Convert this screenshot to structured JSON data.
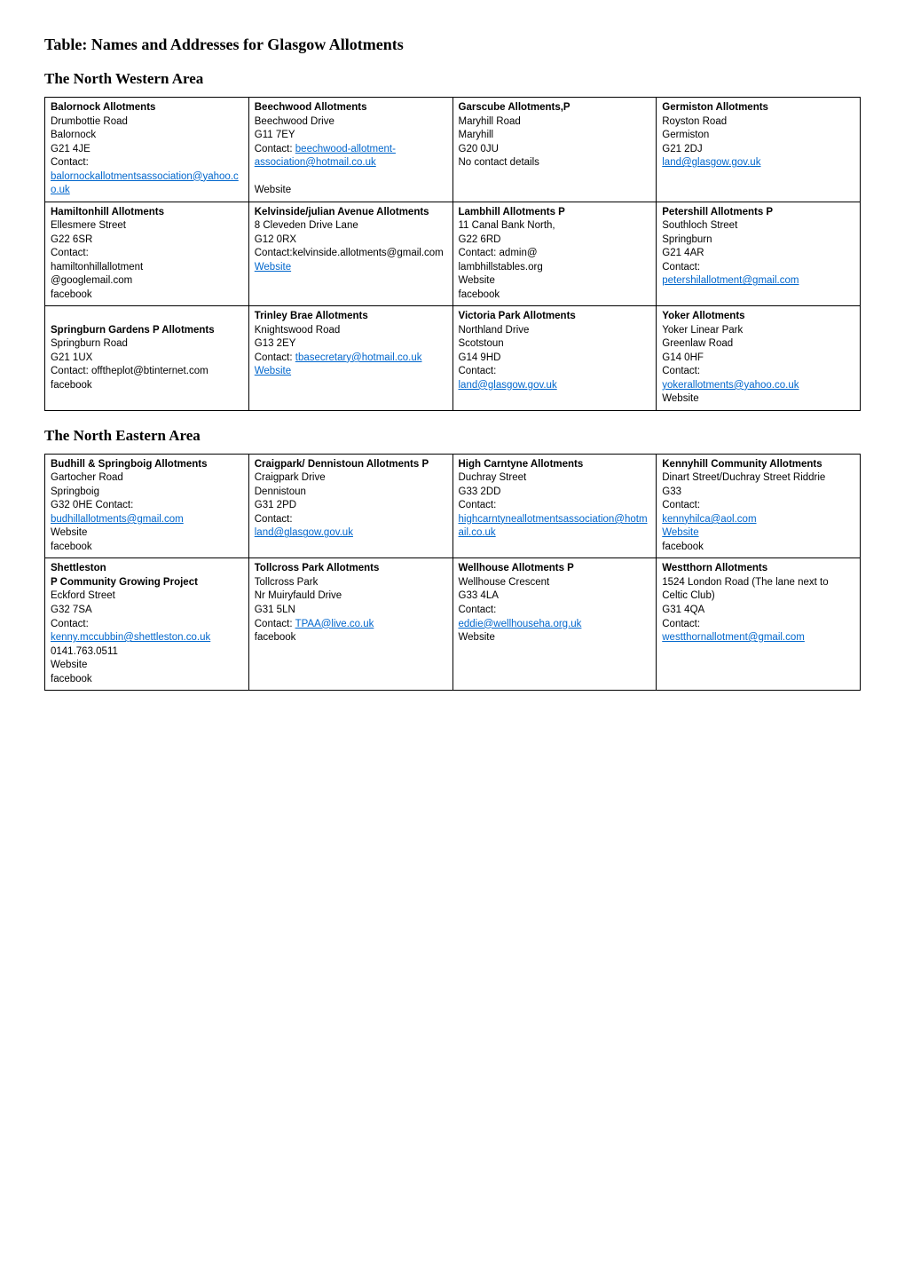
{
  "page_title": "Table: Names and Addresses for Glasgow Allotments",
  "areas": [
    {
      "heading": "The North Western Area",
      "rows": [
        [
          {
            "lines": [
              {
                "t": "Balornock Allotments",
                "b": true
              },
              {
                "t": "Drumbottie Road"
              },
              {
                "t": "Balornock"
              },
              {
                "t": "G21 4JE"
              },
              {
                "t": "Contact:"
              },
              {
                "t": "balornockallotmentsassociation@yahoo.co.uk",
                "link": true
              }
            ]
          },
          {
            "lines": [
              {
                "t": "Beechwood Allotments",
                "b": true
              },
              {
                "t": "Beechwood Drive"
              },
              {
                "t": "G11 7EY"
              },
              {
                "t": "Contact: ",
                "tail": {
                  "t": "beechwood-allotment-association@hotmail.co.uk",
                  "link": true
                }
              },
              {
                "t": ""
              },
              {
                "t": "Website"
              }
            ]
          },
          {
            "lines": [
              {
                "t": "Garscube Allotments,P",
                "b": true
              },
              {
                "t": "Maryhill Road"
              },
              {
                "t": "Maryhill"
              },
              {
                "t": "G20 0JU"
              },
              {
                "t": "No contact details"
              }
            ]
          },
          {
            "lines": [
              {
                "t": "Germiston Allotments",
                "b": true
              },
              {
                "t": "Royston Road"
              },
              {
                "t": "Germiston"
              },
              {
                "t": "G21 2DJ"
              },
              {
                "t": "land@glasgow.gov.uk",
                "link": true
              }
            ]
          }
        ],
        [
          {
            "lines": [
              {
                "t": "Hamiltonhill Allotments",
                "b": true
              },
              {
                "t": "Ellesmere Street"
              },
              {
                "t": "G22 6SR"
              },
              {
                "t": "Contact:"
              },
              {
                "t": "hamiltonhillallotment"
              },
              {
                "t": "@googlemail.com"
              },
              {
                "t": "facebook"
              }
            ]
          },
          {
            "lines": [
              {
                "t": "Kelvinside/julian Avenue Allotments",
                "b": true
              },
              {
                "t": "8 Cleveden Drive Lane"
              },
              {
                "t": "G12 0RX"
              },
              {
                "t": "Contact:kelvinside.allotments@gmail.com"
              },
              {
                "t": "Website",
                "link": true
              }
            ]
          },
          {
            "lines": [
              {
                "t": "Lambhill Allotments P",
                "b": true
              },
              {
                "t": "11 Canal Bank North,"
              },
              {
                "t": "G22 6RD"
              },
              {
                "t": "Contact: admin@"
              },
              {
                "t": "lambhillstables.org"
              },
              {
                "t": "Website"
              },
              {
                "t": "facebook"
              }
            ]
          },
          {
            "lines": [
              {
                "t": "Petershill Allotments P",
                "b": true
              },
              {
                "t": "Southloch Street"
              },
              {
                "t": "Springburn"
              },
              {
                "t": "G21 4AR"
              },
              {
                "t": "Contact:"
              },
              {
                "t": "petershilallotment@gmail.com",
                "link": true
              }
            ]
          }
        ],
        [
          {
            "lines": [
              {
                "t": ""
              },
              {
                "t": "Springburn Gardens P Allotments",
                "b": true
              },
              {
                "t": "Springburn Road"
              },
              {
                "t": "G21 1UX"
              },
              {
                "t": "Contact: offtheplot@btinternet.com"
              },
              {
                "t": "facebook"
              }
            ]
          },
          {
            "lines": [
              {
                "t": "Trinley Brae Allotments",
                "b": true
              },
              {
                "t": "Knightswood Road"
              },
              {
                "t": "G13 2EY"
              },
              {
                "t": "Contact:  ",
                "tail": {
                  "t": "tbasecretary@hotmail.co.uk",
                  "link": true
                }
              },
              {
                "t": "Website",
                "link": true
              }
            ]
          },
          {
            "lines": [
              {
                "t": "Victoria Park Allotments",
                "b": true
              },
              {
                "t": "Northland Drive"
              },
              {
                "t": "Scotstoun"
              },
              {
                "t": "G14 9HD"
              },
              {
                "t": "Contact:"
              },
              {
                "t": "land@glasgow.gov.uk",
                "link": true
              }
            ]
          },
          {
            "lines": [
              {
                "t": "Yoker Allotments",
                "b": true
              },
              {
                "t": "Yoker Linear Park"
              },
              {
                "t": "Greenlaw Road"
              },
              {
                "t": "G14 0HF"
              },
              {
                "t": "Contact:"
              },
              {
                "t": "yokerallotments@yahoo.co.uk",
                "link": true
              },
              {
                "t": "Website"
              }
            ]
          }
        ]
      ]
    },
    {
      "heading": "The North Eastern Area",
      "rows": [
        [
          {
            "lines": [
              {
                "t": "Budhill & Springboig Allotments",
                "b": true
              },
              {
                "t": "Gartocher Road"
              },
              {
                "t": "Springboig"
              },
              {
                "t": "G32 0HE Contact:"
              },
              {
                "t": "budhillallotments@gmail.com",
                "link": true
              },
              {
                "t": "Website"
              },
              {
                "t": "facebook"
              }
            ]
          },
          {
            "lines": [
              {
                "t": "Craigpark/ Dennistoun Allotments P",
                "b": true
              },
              {
                "t": "Craigpark Drive"
              },
              {
                "t": "Dennistoun"
              },
              {
                "t": "G31 2PD"
              },
              {
                "t": "Contact:"
              },
              {
                "t": "land@glasgow.gov.uk",
                "link": true
              }
            ]
          },
          {
            "lines": [
              {
                "t": "High Carntyne Allotments",
                "b": true
              },
              {
                "t": "Duchray Street"
              },
              {
                "t": "G33 2DD"
              },
              {
                "t": "Contact:"
              },
              {
                "t": "highcarntyneallotmentsassociation@hotmail.co.uk",
                "link": true
              }
            ]
          },
          {
            "lines": [
              {
                "t": "Kennyhill Community Allotments",
                "b": true
              },
              {
                "t": "Dinart Street/Duchray Street Riddrie"
              },
              {
                "t": "G33"
              },
              {
                "t": "Contact:"
              },
              {
                "t": "kennyhilca@aol.com",
                "link": true
              },
              {
                "t": "Website",
                "link": true
              },
              {
                "t": "facebook"
              }
            ]
          }
        ],
        [
          {
            "lines": [
              {
                "t": "Shettleston",
                "b": true
              },
              {
                "t": "P Community Growing Project",
                "b": true
              },
              {
                "t": "Eckford Street"
              },
              {
                "t": "G32 7SA"
              },
              {
                "t": "Contact:"
              },
              {
                "t": "kenny.mccubbin@shettleston.co.uk",
                "link": true
              },
              {
                "t": "0141.763.0511"
              },
              {
                "t": "Website"
              },
              {
                "t": "facebook"
              }
            ]
          },
          {
            "lines": [
              {
                "t": "Tollcross Park Allotments",
                "b": true
              },
              {
                "t": "Tollcross Park"
              },
              {
                "t": "Nr Muiryfauld Drive"
              },
              {
                "t": "G31 5LN"
              },
              {
                "t": "Contact: ",
                "tail": {
                  "t": "TPAA@live.co.uk",
                  "link": true
                }
              },
              {
                "t": "facebook"
              }
            ]
          },
          {
            "lines": [
              {
                "t": "Wellhouse Allotments P",
                "b": true
              },
              {
                "t": "Wellhouse Crescent"
              },
              {
                "t": "G33 4LA"
              },
              {
                "t": "Contact:"
              },
              {
                "t": "eddie@wellhouseha.org.uk",
                "link": true
              },
              {
                "t": "Website"
              }
            ]
          },
          {
            "lines": [
              {
                "t": "Westthorn Allotments",
                "b": true
              },
              {
                "t": "1524 London Road (The lane next to Celtic Club)"
              },
              {
                "t": "G31 4QA"
              },
              {
                "t": "Contact:"
              },
              {
                "t": "westthornallotment@gmail.com",
                "link": true
              }
            ]
          }
        ]
      ]
    }
  ]
}
